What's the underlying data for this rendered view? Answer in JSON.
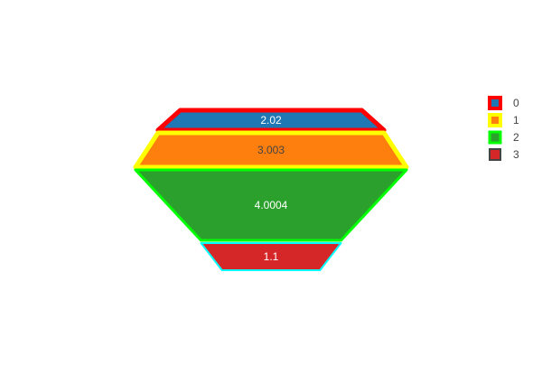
{
  "chart_data": {
    "type": "funnel",
    "values": [
      2.02,
      3.003,
      4.0004,
      1.1
    ],
    "value_labels": [
      "2.02",
      "3.003",
      "4.0004",
      "1.1"
    ],
    "legend": {
      "entries": [
        "0",
        "1",
        "2",
        "3"
      ],
      "placement": "top-right"
    },
    "fill_colors": [
      "#1f77b4",
      "#ff7f0e",
      "#2ca02c",
      "#d62728"
    ],
    "line_colors": [
      "#ff0000",
      "#ffff00",
      "#00ff00",
      "#00ffff"
    ],
    "legend_line_colors": [
      "#ff0000",
      "#ffff00",
      "#00ff00",
      "#444444"
    ],
    "label_colors": [
      "#ffffff",
      "#444444",
      "#ffffff",
      "#ffffff"
    ]
  }
}
